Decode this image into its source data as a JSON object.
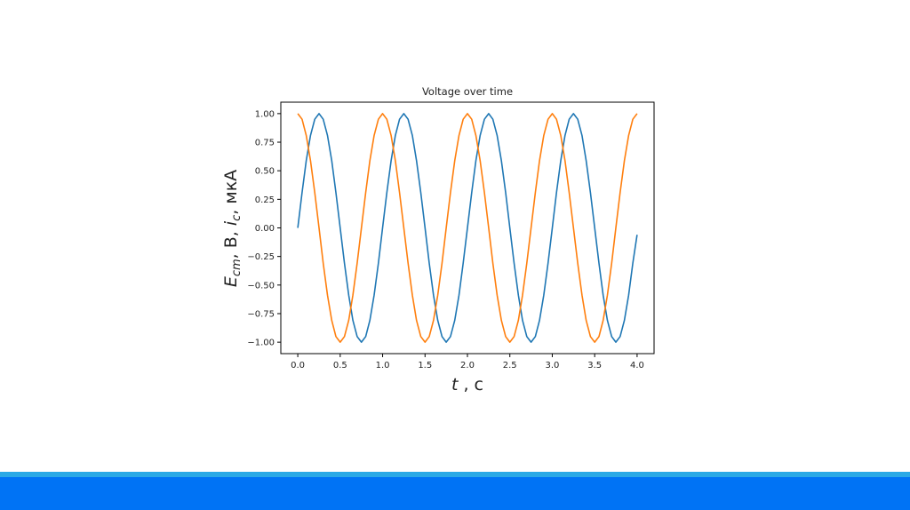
{
  "colors": {
    "accent_light": "#2aa9e6",
    "accent": "#0073f5"
  },
  "chart_data": {
    "type": "line",
    "title": "Voltage  over  time",
    "xlabel": {
      "var": "t",
      "rest": " , c"
    },
    "ylabel": {
      "var": "E",
      "sub": "cm",
      "rest1": ",  B, ",
      "var2": "i",
      "sub2": "c",
      "rest2": ", мкА"
    },
    "xlim": [
      -0.2,
      4.2
    ],
    "ylim": [
      -1.1,
      1.1
    ],
    "xticks": [
      "0.0",
      "0.5",
      "1.0",
      "1.5",
      "2.0",
      "2.5",
      "3.0",
      "3.5",
      "4.0"
    ],
    "yticks": [
      "1.00",
      "0.75",
      "0.50",
      "0.25",
      "0.00",
      "−0.25",
      "−0.50",
      "−0.75",
      "−1.00"
    ],
    "grid": false,
    "x": [
      0,
      0.05,
      0.1,
      0.15,
      0.2,
      0.25,
      0.3,
      0.35,
      0.4,
      0.45,
      0.5,
      0.55,
      0.6,
      0.65,
      0.7,
      0.75,
      0.8,
      0.85,
      0.9,
      0.95,
      1,
      1.05,
      1.1,
      1.15,
      1.2,
      1.25,
      1.3,
      1.35,
      1.4,
      1.45,
      1.5,
      1.55,
      1.6,
      1.65,
      1.7,
      1.75,
      1.8,
      1.85,
      1.9,
      1.95,
      2,
      2.05,
      2.1,
      2.15,
      2.2,
      2.25,
      2.3,
      2.35,
      2.4,
      2.45,
      2.5,
      2.55,
      2.6,
      2.65,
      2.7,
      2.75,
      2.8,
      2.85,
      2.9,
      2.95,
      3,
      3.05,
      3.1,
      3.15,
      3.2,
      3.25,
      3.3,
      3.35,
      3.4,
      3.45,
      3.5,
      3.55,
      3.6,
      3.65,
      3.7,
      3.75,
      3.8,
      3.85,
      3.9,
      3.95,
      4
    ],
    "series": [
      {
        "color": "#1f77b4",
        "values": [
          0,
          0.309,
          0.588,
          0.809,
          0.951,
          1,
          0.951,
          0.809,
          0.588,
          0.309,
          0,
          -0.309,
          -0.588,
          -0.809,
          -0.951,
          -1,
          -0.951,
          -0.809,
          -0.588,
          -0.309,
          0,
          0.309,
          0.588,
          0.809,
          0.951,
          1,
          0.951,
          0.809,
          0.588,
          0.309,
          0,
          -0.309,
          -0.588,
          -0.809,
          -0.951,
          -1,
          -0.951,
          -0.809,
          -0.588,
          -0.309,
          0,
          0.309,
          0.588,
          0.809,
          0.951,
          1,
          0.951,
          0.809,
          0.588,
          0.309,
          0,
          -0.309,
          -0.588,
          -0.809,
          -0.951,
          -1,
          -0.951,
          -0.809,
          -0.588,
          -0.309,
          0,
          0.309,
          0.588,
          0.809,
          0.951,
          1,
          0.951,
          0.809,
          0.588,
          0.309,
          0,
          -0.309,
          -0.588,
          -0.809,
          -0.951,
          -1,
          -0.951,
          -0.809,
          -0.588,
          -0.309,
          -0.06
        ]
      },
      {
        "color": "#ff7f0e",
        "values": [
          1,
          0.951,
          0.809,
          0.588,
          0.309,
          0,
          -0.309,
          -0.588,
          -0.809,
          -0.951,
          -1,
          -0.951,
          -0.809,
          -0.588,
          -0.309,
          0,
          0.309,
          0.588,
          0.809,
          0.951,
          1,
          0.951,
          0.809,
          0.588,
          0.309,
          0,
          -0.309,
          -0.588,
          -0.809,
          -0.951,
          -1,
          -0.951,
          -0.809,
          -0.588,
          -0.309,
          0,
          0.309,
          0.588,
          0.809,
          0.951,
          1,
          0.951,
          0.809,
          0.588,
          0.309,
          0,
          -0.309,
          -0.588,
          -0.809,
          -0.951,
          -1,
          -0.951,
          -0.809,
          -0.588,
          -0.309,
          0,
          0.309,
          0.588,
          0.809,
          0.951,
          1,
          0.951,
          0.809,
          0.588,
          0.309,
          0,
          -0.309,
          -0.588,
          -0.809,
          -0.951,
          -1,
          -0.951,
          -0.809,
          -0.588,
          -0.309,
          0,
          0.309,
          0.588,
          0.809,
          0.951,
          1
        ]
      }
    ]
  }
}
